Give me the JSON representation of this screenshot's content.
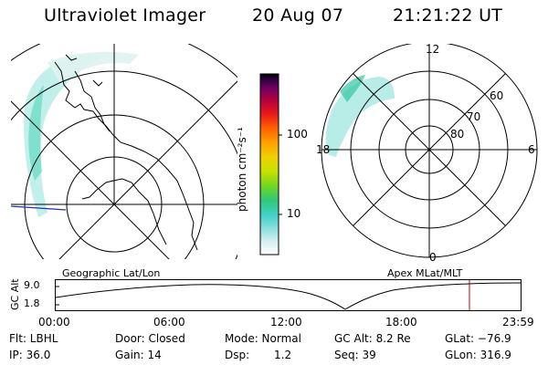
{
  "header": {
    "instrument": "Ultraviolet Imager",
    "date": "20 Aug 07",
    "time": "21:21:22 UT"
  },
  "geographic_panel": {
    "label": "Geographic Lat/Lon"
  },
  "apex_panel": {
    "label": "Apex MLat/MLT",
    "mlt_labels": {
      "top": "12",
      "left": "18",
      "right": "6",
      "bottom": "0"
    },
    "lat_labels": [
      "60",
      "70",
      "80"
    ]
  },
  "colorbar": {
    "unit": "photon cm⁻²s⁻¹",
    "ticks": [
      "100",
      "10"
    ],
    "colors": [
      "#ffffff",
      "#d8f0f0",
      "#8fe0e0",
      "#40d0c8",
      "#30c878",
      "#70d820",
      "#c8e000",
      "#f0d000",
      "#ffa000",
      "#ff6000",
      "#e81818",
      "#b00040",
      "#700060",
      "#300040",
      "#000000"
    ]
  },
  "altitude_plot": {
    "ylabel": "GC Alt",
    "yticks": [
      "9.0",
      "1.8"
    ],
    "xticks": [
      "00:00",
      "06:00",
      "12:00",
      "18:00",
      "23:59"
    ],
    "current_time_fraction": 0.89,
    "marker_color": "#cc0000"
  },
  "info": {
    "filter": "Flt: LBHL",
    "door": "Door: Closed",
    "mode": "Mode: Normal",
    "gc_alt": "GC Alt: 8.2 Re",
    "glat": "GLat: −76.9",
    "ip": "IP: 36.0",
    "gain": "Gain: 14",
    "dsp_label": "Dsp:",
    "dsp_value": "1.2",
    "seq": "Seq: 39",
    "glon": "GLon: 316.9"
  }
}
